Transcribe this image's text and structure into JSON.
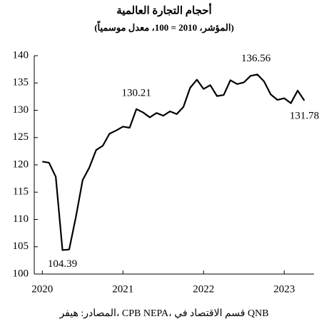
{
  "chart_data": {
    "type": "line",
    "title": "أحجام التجارة العالمية",
    "subtitle": "(المؤشر، 2010 = 100، معدل موسمياً)",
    "source": "المصادر: هيفر، CPB NEPA، قسم الاقتصاد في QNB",
    "x": [
      2020,
      2020.083,
      2020.167,
      2020.25,
      2020.333,
      2020.417,
      2020.5,
      2020.583,
      2020.667,
      2020.75,
      2020.833,
      2020.917,
      2021,
      2021.083,
      2021.167,
      2021.25,
      2021.333,
      2021.417,
      2021.5,
      2021.583,
      2021.667,
      2021.75,
      2021.833,
      2021.917,
      2022,
      2022.083,
      2022.167,
      2022.25,
      2022.333,
      2022.417,
      2022.5,
      2022.583,
      2022.667,
      2022.75,
      2022.833,
      2022.917,
      2023,
      2023.083,
      2023.167,
      2023.25
    ],
    "series": [
      {
        "color": "#000000",
        "values": [
          120.6,
          120.4,
          117.8,
          104.39,
          104.5,
          110.5,
          117.2,
          119.5,
          122.7,
          123.5,
          125.7,
          126.3,
          127.0,
          126.8,
          130.21,
          129.6,
          128.7,
          129.5,
          129.0,
          129.8,
          129.3,
          130.6,
          134.1,
          135.6,
          133.9,
          134.6,
          132.6,
          132.8,
          135.5,
          134.8,
          135.1,
          136.3,
          136.56,
          135.3,
          132.9,
          131.9,
          132.2,
          131.3,
          133.6,
          131.78
        ]
      }
    ],
    "xlim": [
      2019.9,
      2023.37
    ],
    "xticks": [
      2020,
      2021,
      2022,
      2023
    ],
    "ylim": [
      100,
      140
    ],
    "yticks": [
      100,
      105,
      110,
      115,
      120,
      125,
      130,
      135,
      140
    ]
  }
}
